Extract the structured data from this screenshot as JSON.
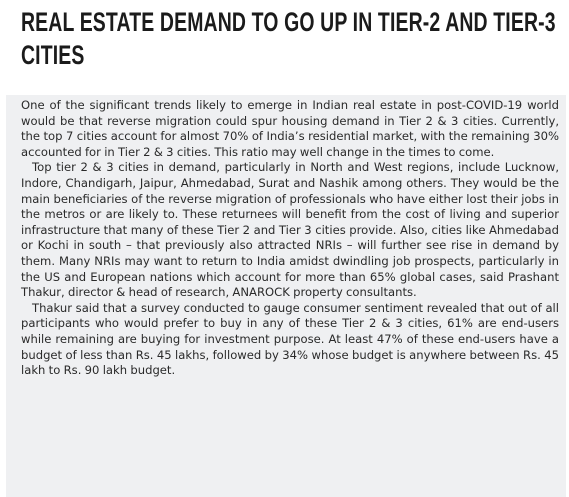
{
  "article": {
    "headline": "REAL ESTATE DEMAND TO GO UP IN TIER-2 AND TIER-3 CITIES",
    "paragraphs": [
      "One of the significant trends likely to emerge in Indian real estate in post-COVID-19 world would be that reverse migration could spur housing demand in Tier 2 & 3 cities. Currently, the top 7 cities account for almost 70% of India’s residential market, with the remaining 30% accounted for in Tier 2 & 3 cities. This ratio may well change in the times to come.",
      "Top tier 2 & 3 cities in demand, particularly in North and West regions, include Lucknow, Indore, Chandigarh, Jaipur, Ahmedabad, Surat and Nashik among others. They would be the main beneficiaries of the reverse migration of professionals who have either lost their jobs in the metros or are likely to. These returnees will benefit from the cost of living and superior infrastructure that many of these Tier 2 and Tier 3 cities provide. Also, cities like Ahmedabad or Kochi in south – that previously also attracted NRIs – will further see rise in demand by them. Many NRIs may want to return to India amidst dwindling job prospects, particularly in the US and European nations which account for more than 65% global cases, said Prashant Thakur, director & head of research, ANAROCK property consultants.",
      "Thakur said that a survey conducted to gauge consumer sentiment revealed that out of all participants who would prefer to buy in any of these Tier 2 & 3 cities, 61% are end-users while remaining are buying for investment purpose. At least 47% of these end-users have a budget of less than Rs. 45 lakhs, followed by 34% whose budget is anywhere between Rs. 45 lakh to Rs.  90 lakh budget."
    ]
  }
}
